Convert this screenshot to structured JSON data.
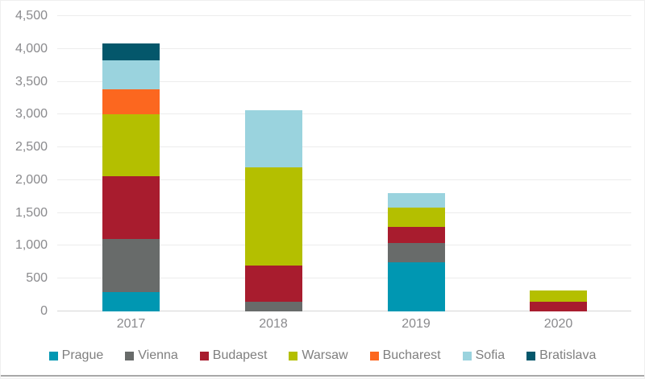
{
  "chart_data": {
    "type": "bar",
    "stacked": true,
    "title": "",
    "xlabel": "",
    "ylabel": "",
    "categories": [
      "2017",
      "2018",
      "2019",
      "2020"
    ],
    "series": [
      {
        "name": "Prague",
        "color": "#0097b2",
        "values": [
          300,
          0,
          750,
          0
        ]
      },
      {
        "name": "Vienna",
        "color": "#686b6a",
        "values": [
          800,
          150,
          290,
          0
        ]
      },
      {
        "name": "Budapest",
        "color": "#a81c2e",
        "values": [
          960,
          550,
          250,
          150
        ]
      },
      {
        "name": "Warsaw",
        "color": "#b4bf00",
        "values": [
          940,
          1500,
          290,
          170
        ]
      },
      {
        "name": "Bucharest",
        "color": "#fc671f",
        "values": [
          390,
          0,
          0,
          0
        ]
      },
      {
        "name": "Sofia",
        "color": "#9ad3de",
        "values": [
          430,
          860,
          220,
          0
        ]
      },
      {
        "name": "Bratislava",
        "color": "#04576b",
        "values": [
          260,
          0,
          0,
          0
        ]
      }
    ],
    "totals_by_category": [
      4080,
      3060,
      1800,
      320
    ],
    "ylim": [
      0,
      4500
    ],
    "ytick_interval": 500,
    "ytick_labels": [
      "0",
      "500",
      "1,000",
      "1,500",
      "2,000",
      "2,500",
      "3,000",
      "3,500",
      "4,000",
      "4,500"
    ],
    "grid": true,
    "legend_position": "bottom",
    "axis_text_color": "#8a8a8d",
    "legend_text_color": "#7f7f7f",
    "gridline_color": "#ececec",
    "baseline_color": "#d6d6d6"
  }
}
